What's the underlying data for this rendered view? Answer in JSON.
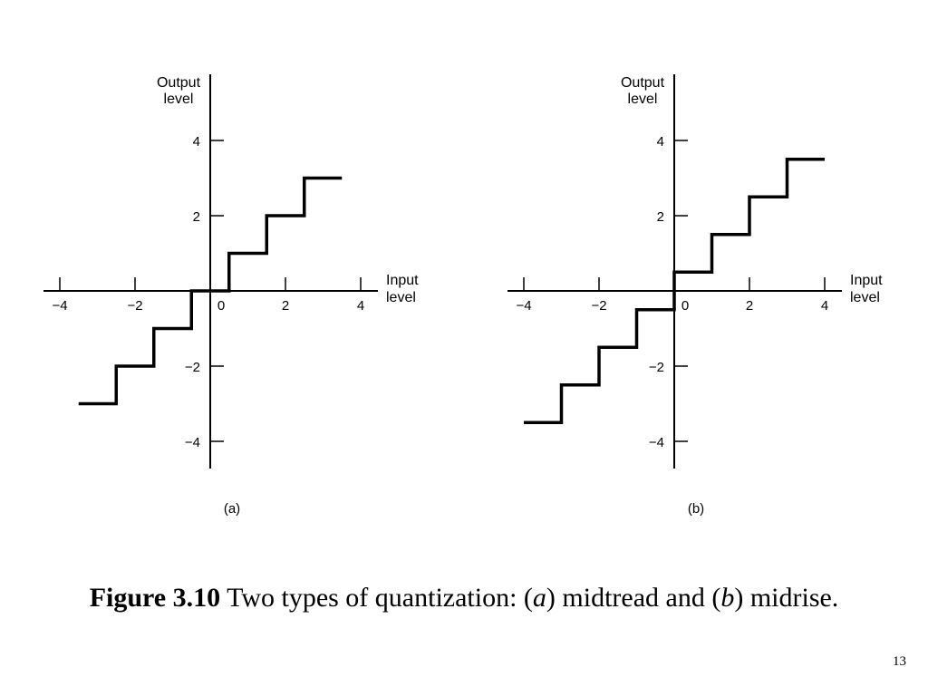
{
  "figure": {
    "label": "Figure 3.10",
    "text_before_a": " Two types of quantization: (",
    "a_letter": "a",
    "text_mid": ") midtread and (",
    "b_letter": "b",
    "text_end": ") midrise."
  },
  "page_number": "13",
  "panels": [
    {
      "id": "a",
      "sublabel": "(a)",
      "y_axis_label": [
        "Output",
        "level"
      ],
      "x_axis_label": [
        "Input",
        "level"
      ],
      "x_ticks": [
        "−4",
        "−2",
        "0",
        "2",
        "4"
      ],
      "y_ticks": [
        "4",
        "2",
        "−2",
        "−4"
      ],
      "type": "midtread",
      "steps": [
        {
          "x0": -3.5,
          "x1": -2.5,
          "y": -3
        },
        {
          "x0": -2.5,
          "x1": -1.5,
          "y": -2
        },
        {
          "x0": -1.5,
          "x1": -0.5,
          "y": -1
        },
        {
          "x0": -0.5,
          "x1": 0.5,
          "y": 0
        },
        {
          "x0": 0.5,
          "x1": 1.5,
          "y": 1
        },
        {
          "x0": 1.5,
          "x1": 2.5,
          "y": 2
        },
        {
          "x0": 2.5,
          "x1": 3.5,
          "y": 3
        }
      ]
    },
    {
      "id": "b",
      "sublabel": "(b)",
      "y_axis_label": [
        "Output",
        "level"
      ],
      "x_axis_label": [
        "Input",
        "level"
      ],
      "x_ticks": [
        "−4",
        "−2",
        "0",
        "2",
        "4"
      ],
      "y_ticks": [
        "4",
        "2",
        "−2",
        "−4"
      ],
      "type": "midrise",
      "steps": [
        {
          "x0": -4,
          "x1": -3,
          "y": -3.5
        },
        {
          "x0": -3,
          "x1": -2,
          "y": -2.5
        },
        {
          "x0": -2,
          "x1": -1,
          "y": -1.5
        },
        {
          "x0": -1,
          "x1": 0,
          "y": -0.5
        },
        {
          "x0": 0,
          "x1": 1,
          "y": 0.5
        },
        {
          "x0": 1,
          "x1": 2,
          "y": 1.5
        },
        {
          "x0": 2,
          "x1": 3,
          "y": 2.5
        },
        {
          "x0": 3,
          "x1": 4,
          "y": 3.5
        }
      ]
    }
  ]
}
